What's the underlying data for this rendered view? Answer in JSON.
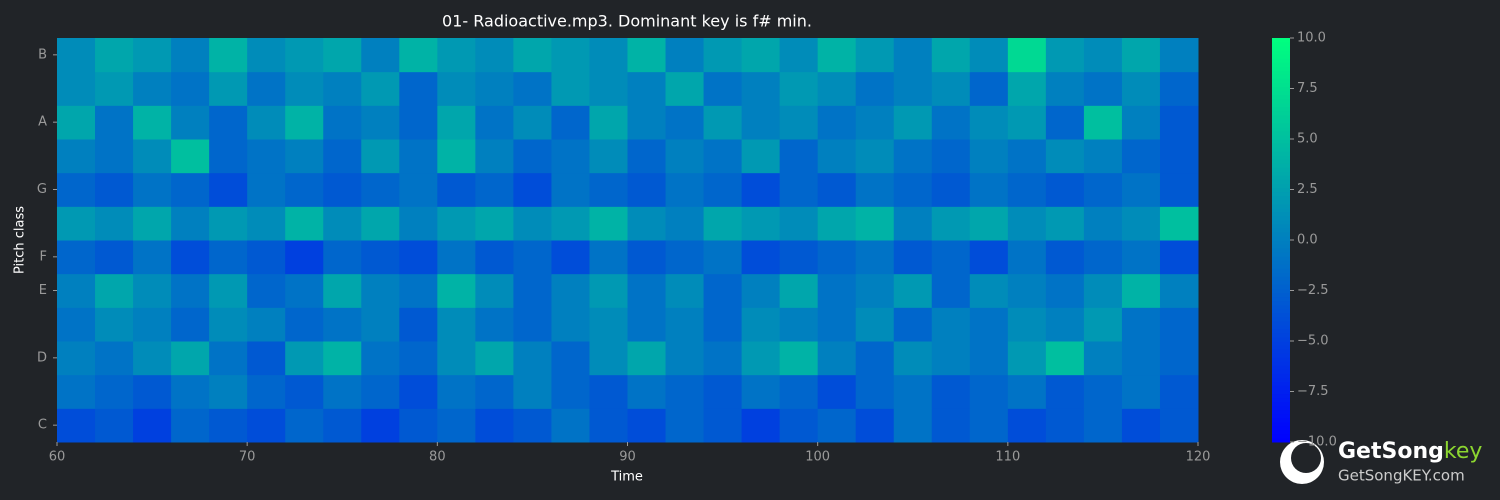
{
  "chart_data": {
    "type": "heatmap",
    "title": "01- Radioactive.mp3. Dominant key is f# min.",
    "x_label": "Time",
    "y_label": "Pitch class",
    "xlim": [
      60,
      120
    ],
    "xticks": [
      60,
      70,
      80,
      90,
      100,
      110,
      120
    ],
    "categories": [
      "C",
      null,
      "D",
      null,
      "E",
      "F",
      null,
      "G",
      null,
      "A",
      null,
      "B"
    ],
    "colormap": "winter",
    "clim": [
      -10,
      10
    ],
    "cticks": [
      {
        "value": -10,
        "label": "−10.0"
      },
      {
        "value": -7.5,
        "label": "−7.5"
      },
      {
        "value": -5,
        "label": "−5.0"
      },
      {
        "value": -2.5,
        "label": "−2.5"
      },
      {
        "value": 0,
        "label": "0.0"
      },
      2.5,
      {
        "value": 5,
        "label": "5.0"
      },
      7.5,
      {
        "value": 10,
        "label": "10.0"
      }
    ],
    "values": [
      [
        -4,
        -3,
        -5,
        -2,
        -3,
        -4,
        -2,
        -3,
        -5,
        -3,
        -2,
        -4,
        -3,
        -1,
        -3,
        -4,
        -2,
        -3,
        -5,
        -3,
        -2,
        -4,
        -1,
        -3,
        -2,
        -4,
        -3,
        -2,
        -4,
        -3
      ],
      [
        -1,
        -2,
        -3,
        -1,
        0,
        -2,
        -3,
        -1,
        -2,
        -4,
        -1,
        -2,
        0,
        -2,
        -3,
        -1,
        -2,
        -3,
        -1,
        -2,
        -4,
        -2,
        -1,
        -3,
        -2,
        -1,
        -3,
        -2,
        -1,
        -3
      ],
      [
        0,
        -1,
        1,
        3,
        -1,
        -3,
        2,
        4,
        -1,
        -2,
        1,
        3,
        0,
        -2,
        1,
        3,
        0,
        -1,
        2,
        4,
        0,
        -2,
        1,
        0,
        -1,
        2,
        5,
        0,
        -1,
        -2
      ],
      [
        -1,
        1,
        0,
        -2,
        1,
        0,
        -2,
        -1,
        0,
        -3,
        1,
        -1,
        -2,
        0,
        1,
        -1,
        0,
        -2,
        1,
        0,
        -1,
        1,
        -2,
        0,
        -1,
        1,
        0,
        2,
        -1,
        -2
      ],
      [
        0,
        3,
        1,
        -1,
        2,
        -2,
        -1,
        3,
        0,
        -1,
        4,
        1,
        -2,
        0,
        2,
        -1,
        1,
        -2,
        0,
        3,
        -1,
        0,
        2,
        -2,
        1,
        0,
        -1,
        1,
        4,
        0
      ],
      [
        -2,
        -3,
        -1,
        -4,
        -2,
        -3,
        -5,
        -2,
        -3,
        -4,
        -1,
        -3,
        -2,
        -4,
        -1,
        -3,
        -2,
        -1,
        -4,
        -3,
        -2,
        -1,
        -3,
        -2,
        -4,
        -1,
        -3,
        -2,
        -1,
        -4
      ],
      [
        2,
        1,
        3,
        0,
        2,
        1,
        4,
        1,
        3,
        0,
        2,
        3,
        1,
        2,
        4,
        1,
        0,
        3,
        2,
        1,
        3,
        4,
        0,
        2,
        3,
        1,
        2,
        0,
        1,
        5
      ],
      [
        -2,
        -3,
        -1,
        -2,
        -4,
        -1,
        -2,
        -3,
        -2,
        -1,
        -3,
        -2,
        -4,
        -1,
        -2,
        -3,
        -1,
        -2,
        -4,
        -2,
        -3,
        -1,
        -2,
        -3,
        -1,
        -2,
        -3,
        -2,
        -1,
        -3
      ],
      [
        0,
        -1,
        1,
        5,
        -2,
        -1,
        0,
        -2,
        2,
        -1,
        4,
        0,
        -2,
        -1,
        1,
        -2,
        0,
        -1,
        2,
        -2,
        0,
        1,
        -1,
        -2,
        0,
        -1,
        1,
        0,
        -2,
        -3
      ],
      [
        3,
        -1,
        4,
        0,
        -2,
        1,
        4,
        -1,
        0,
        -2,
        3,
        -1,
        1,
        -2,
        3,
        0,
        -1,
        2,
        0,
        1,
        -1,
        0,
        2,
        -1,
        1,
        2,
        -2,
        5,
        0,
        -3
      ],
      [
        1,
        2,
        0,
        -1,
        2,
        -1,
        1,
        0,
        2,
        -2,
        1,
        0,
        -1,
        2,
        1,
        0,
        3,
        -1,
        0,
        2,
        1,
        -1,
        0,
        1,
        -2,
        3,
        0,
        -1,
        1,
        -2
      ],
      [
        1,
        3,
        2,
        0,
        4,
        1,
        2,
        3,
        0,
        4,
        2,
        1,
        3,
        2,
        1,
        4,
        0,
        2,
        3,
        1,
        4,
        2,
        0,
        3,
        1,
        7,
        2,
        1,
        3,
        0
      ]
    ]
  },
  "watermark": {
    "brand": "GetSong",
    "brand_suffix": "key",
    "url": "GetSongKEY.com"
  }
}
